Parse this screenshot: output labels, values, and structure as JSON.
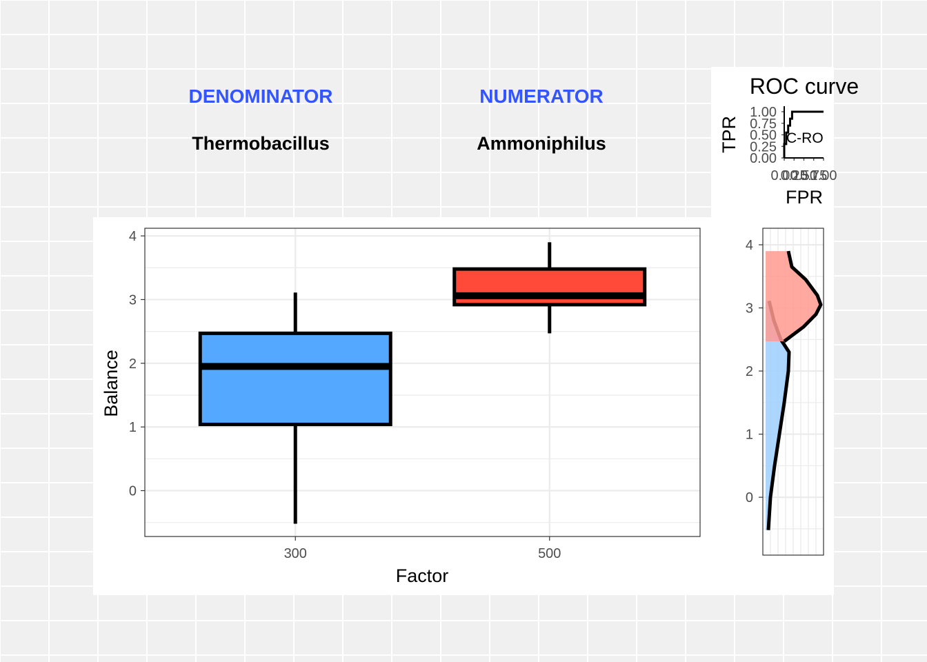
{
  "header": {
    "denominator_label": "DENOMINATOR",
    "denominator_taxon": "Thermobacillus",
    "numerator_label": "NUMERATOR",
    "numerator_taxon": "Ammoniphilus"
  },
  "colors": {
    "accent": "#3355ff",
    "box_300": "#55a8ff",
    "box_500": "#ff4a3a",
    "density_300": "#9fcfff",
    "density_500": "#ff9a90",
    "background": "#f0f0f0"
  },
  "chart_data": [
    {
      "type": "box",
      "xlabel": "Factor",
      "ylabel": "Balance",
      "categories": [
        "300",
        "500"
      ],
      "yticks": [
        "0",
        "1",
        "2",
        "3",
        "4"
      ],
      "ylim": [
        -0.72,
        4.12
      ],
      "grid": true,
      "boxes": [
        {
          "category": "300",
          "whisker_low": -0.52,
          "q1": 1.04,
          "median": 1.95,
          "q3": 2.47,
          "whisker_high": 3.11
        },
        {
          "category": "500",
          "whisker_low": 2.47,
          "q1": 2.92,
          "median": 3.06,
          "q3": 3.48,
          "whisker_high": 3.9
        }
      ]
    },
    {
      "type": "line",
      "title": "ROC curve",
      "xlabel": "FPR",
      "ylabel": "TPR",
      "yticks": [
        "0.00",
        "0.25",
        "0.50",
        "0.75",
        "1.00"
      ],
      "xticks": [
        "0.00",
        "0.25",
        "0.50",
        "0.75",
        "1.00"
      ],
      "annotation": "C-RO",
      "xlim": [
        0,
        1
      ],
      "ylim": [
        0,
        1
      ],
      "points": [
        [
          0,
          0
        ],
        [
          0,
          0.3
        ],
        [
          0.05,
          0.3
        ],
        [
          0.05,
          0.55
        ],
        [
          0.1,
          0.55
        ],
        [
          0.1,
          0.7
        ],
        [
          0.15,
          0.7
        ],
        [
          0.15,
          0.85
        ],
        [
          0.2,
          0.85
        ],
        [
          0.2,
          1
        ],
        [
          1,
          1
        ]
      ]
    },
    {
      "type": "area",
      "orientation": "vertical",
      "yticks": [
        "0",
        "1",
        "2",
        "3",
        "4"
      ],
      "ylim": [
        -0.72,
        4.12
      ],
      "series": [
        {
          "y_range": [
            -0.52,
            3.11
          ],
          "density": [
            [
              -0.52,
              0.04
            ],
            [
              0,
              0.07
            ],
            [
              0.5,
              0.13
            ],
            [
              1,
              0.2
            ],
            [
              1.5,
              0.27
            ],
            [
              2,
              0.33
            ],
            [
              2.3,
              0.34
            ],
            [
              2.5,
              0.22
            ],
            [
              2.8,
              0.12
            ],
            [
              3.11,
              0.05
            ]
          ]
        },
        {
          "y_range": [
            2.47,
            3.9
          ],
          "density": [
            [
              2.47,
              0.27
            ],
            [
              2.7,
              0.55
            ],
            [
              2.9,
              0.73
            ],
            [
              3.05,
              0.8
            ],
            [
              3.2,
              0.75
            ],
            [
              3.45,
              0.58
            ],
            [
              3.65,
              0.38
            ],
            [
              3.9,
              0.33
            ]
          ]
        }
      ]
    }
  ]
}
